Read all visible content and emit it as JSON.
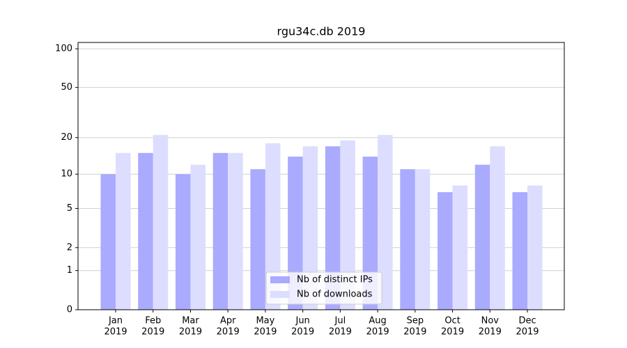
{
  "chart_data": {
    "type": "bar",
    "title": "rgu34c.db 2019",
    "categories": [
      [
        "Jan",
        "2019"
      ],
      [
        "Feb",
        "2019"
      ],
      [
        "Mar",
        "2019"
      ],
      [
        "Apr",
        "2019"
      ],
      [
        "May",
        "2019"
      ],
      [
        "Jun",
        "2019"
      ],
      [
        "Jul",
        "2019"
      ],
      [
        "Aug",
        "2019"
      ],
      [
        "Sep",
        "2019"
      ],
      [
        "Oct",
        "2019"
      ],
      [
        "Nov",
        "2019"
      ],
      [
        "Dec",
        "2019"
      ]
    ],
    "series": [
      {
        "name": "Nb of distinct IPs",
        "color": "#aaaaff",
        "values": [
          10,
          15,
          10,
          15,
          11,
          14,
          17,
          14,
          11,
          7,
          12,
          7
        ]
      },
      {
        "name": "Nb of downloads",
        "color": "#ddddff",
        "values": [
          15,
          21,
          12,
          15,
          18,
          17,
          19,
          21,
          11,
          8,
          17,
          8
        ]
      }
    ],
    "yscale": "log1p",
    "ylim": [
      0,
      112
    ],
    "yticks": [
      0,
      1,
      2,
      5,
      10,
      20,
      50,
      100
    ],
    "grid": true,
    "legend": "lower center"
  }
}
